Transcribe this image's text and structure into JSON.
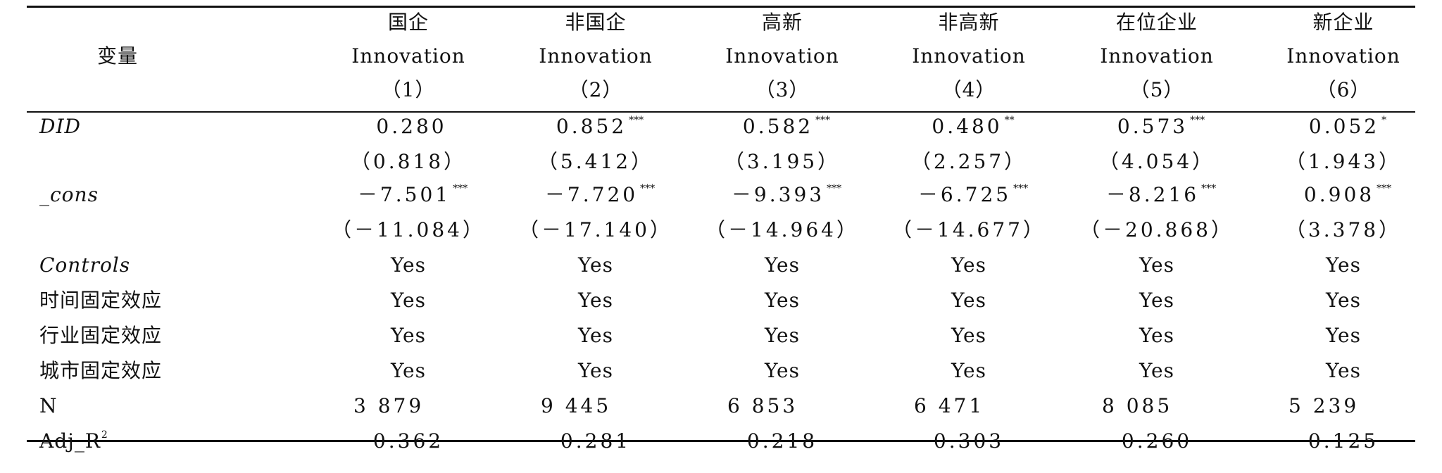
{
  "header": {
    "variable_label": "变量",
    "columns": [
      {
        "group": "国企",
        "dep": "Innovation",
        "num": "（1）"
      },
      {
        "group": "非国企",
        "dep": "Innovation",
        "num": "（2）"
      },
      {
        "group": "高新",
        "dep": "Innovation",
        "num": "（3）"
      },
      {
        "group": "非高新",
        "dep": "Innovation",
        "num": "（4）"
      },
      {
        "group": "在位企业",
        "dep": "Innovation",
        "num": "（5）"
      },
      {
        "group": "新企业",
        "dep": "Innovation",
        "num": "（6）"
      }
    ]
  },
  "rows": {
    "did": {
      "label": "DID",
      "coef": [
        "0.280",
        "0.852",
        "0.582",
        "0.480",
        "0.573",
        "0.052"
      ],
      "stars": [
        "",
        "***",
        "***",
        "**",
        "***",
        "*"
      ],
      "t": [
        "（0.818）",
        "（5.412）",
        "（3.195）",
        "（2.257）",
        "（4.054）",
        "（1.943）"
      ]
    },
    "cons": {
      "label": "_cons",
      "coef": [
        "－7.501",
        "－7.720",
        "－9.393",
        "－6.725",
        "－8.216",
        "0.908"
      ],
      "stars": [
        "***",
        "***",
        "***",
        "***",
        "***",
        "***"
      ],
      "t": [
        "（－11.084）",
        "（－17.140）",
        "（－14.964）",
        "（－14.677）",
        "（－20.868）",
        "（3.378）"
      ]
    },
    "controls": {
      "label": "Controls",
      "values": [
        "Yes",
        "Yes",
        "Yes",
        "Yes",
        "Yes",
        "Yes"
      ]
    },
    "time_fe": {
      "label": "时间固定效应",
      "values": [
        "Yes",
        "Yes",
        "Yes",
        "Yes",
        "Yes",
        "Yes"
      ]
    },
    "industry_fe": {
      "label": "行业固定效应",
      "values": [
        "Yes",
        "Yes",
        "Yes",
        "Yes",
        "Yes",
        "Yes"
      ]
    },
    "city_fe": {
      "label": "城市固定效应",
      "values": [
        "Yes",
        "Yes",
        "Yes",
        "Yes",
        "Yes",
        "Yes"
      ]
    },
    "n": {
      "label": "N",
      "values": [
        "3 879",
        "9 445",
        "6 853",
        "6 471",
        "8 085",
        "5 239"
      ]
    },
    "adj_r2": {
      "label": "Adj_R",
      "label_sup": "2",
      "values": [
        "0.362",
        "0.281",
        "0.218",
        "0.303",
        "0.260",
        "0.125"
      ]
    }
  }
}
